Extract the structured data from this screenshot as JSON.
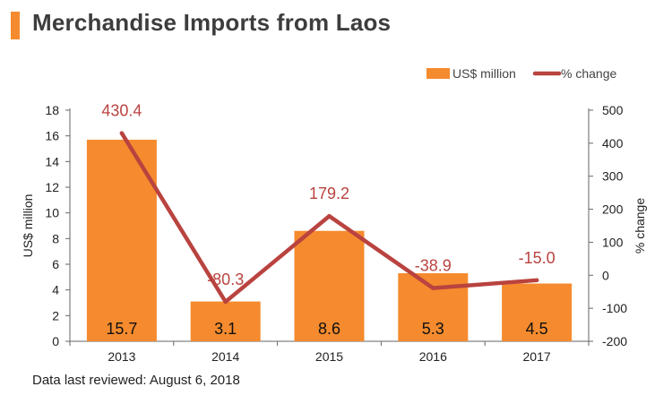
{
  "title": "Merchandise Imports from Laos",
  "footnote": "Data last reviewed: August 6, 2018",
  "colors": {
    "bar": "#f58b2e",
    "line": "#b9433f",
    "title_accent": "#f58b2e"
  },
  "chart_data": {
    "type": "bar",
    "categories": [
      "2013",
      "2014",
      "2015",
      "2016",
      "2017"
    ],
    "series": [
      {
        "name": "US$ million",
        "type": "bar",
        "axis": "left",
        "values": [
          15.7,
          3.1,
          8.6,
          5.3,
          4.5
        ],
        "labels": [
          "15.7",
          "3.1",
          "8.6",
          "5.3",
          "4.5"
        ]
      },
      {
        "name": "% change",
        "type": "line",
        "axis": "right",
        "values": [
          430.4,
          -80.3,
          179.2,
          -38.9,
          -15.0
        ],
        "labels": [
          "430.4",
          "-80.3",
          "179.2",
          "-38.9",
          "-15.0"
        ]
      }
    ],
    "ylabel": "US$ million",
    "ylabel_right": "% change",
    "ylim": [
      0,
      18
    ],
    "ylim_right": [
      -200,
      500
    ],
    "yticks": [
      "0",
      "2",
      "4",
      "6",
      "8",
      "10",
      "12",
      "14",
      "16",
      "18"
    ],
    "yticks_right": [
      "-200",
      "-100",
      "0",
      "100",
      "200",
      "300",
      "400",
      "500"
    ],
    "legend_position": "top-right",
    "grid": false
  }
}
